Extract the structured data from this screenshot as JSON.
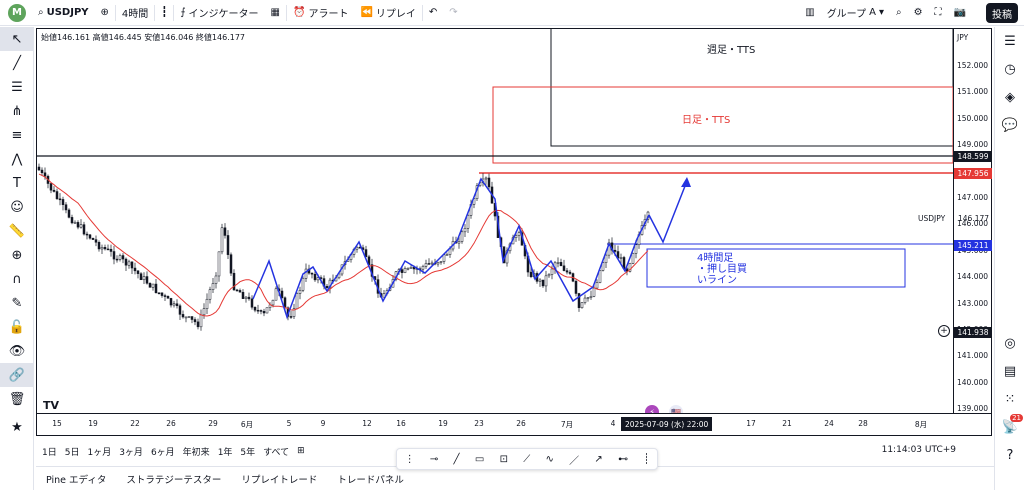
{
  "topbar": {
    "logo": "M",
    "symbol": "USDJPY",
    "interval": "4時間",
    "indicators": "インジケーター",
    "alerts": "アラート",
    "replay": "リプレイ",
    "group": "グループ",
    "group_value": "A",
    "post": "投稿"
  },
  "ohlc": {
    "open_label": "始値",
    "open": "146.161",
    "high_label": "高値",
    "high": "146.445",
    "low_label": "安値",
    "low": "146.046",
    "close_label": "終値",
    "close": "146.177"
  },
  "price_axis": {
    "currency": "JPY",
    "ticks": [
      "152.000",
      "151.000",
      "150.000",
      "149.000",
      "147.000",
      "146.000",
      "145.000",
      "144.000",
      "143.000",
      "142.000",
      "141.000",
      "140.000",
      "139.000"
    ],
    "tags": [
      {
        "value": "148.599",
        "color": "#131722"
      },
      {
        "value": "147.956",
        "color": "#e53935"
      },
      {
        "value": "145.211",
        "color": "#2433e0"
      },
      {
        "value": "141.938",
        "color": "#131722"
      }
    ],
    "symbol_label": "USDJPY",
    "last_price": "146.177"
  },
  "time_axis": {
    "labels": [
      "15",
      "19",
      "22",
      "26",
      "29",
      "6月",
      "5",
      "9",
      "12",
      "16",
      "19",
      "23",
      "26",
      "7月",
      "4",
      "10",
      "17",
      "21",
      "24",
      "28",
      "8月"
    ],
    "cursor": "2025-07-09 (水)   22:00"
  },
  "annotations": {
    "weekly": "週足・TTS",
    "daily": "日足・TTS",
    "h4_line1": "4時間足",
    "h4_line2": "・押し目買",
    "h4_line3": "いライン"
  },
  "colors": {
    "red": "#e53935",
    "blue": "#2433e0",
    "dark": "#131722"
  },
  "range_bar": {
    "ranges": [
      "1日",
      "5日",
      "1ヶ月",
      "3ヶ月",
      "6ヶ月",
      "年初来",
      "1年",
      "5年",
      "すべて"
    ],
    "clock": "11:14:03 UTC+9"
  },
  "bottom_tabs": [
    "Pine エディタ",
    "ストラテジーテスター",
    "リプレイトレード",
    "トレードパネル"
  ],
  "right_badge": "21"
}
